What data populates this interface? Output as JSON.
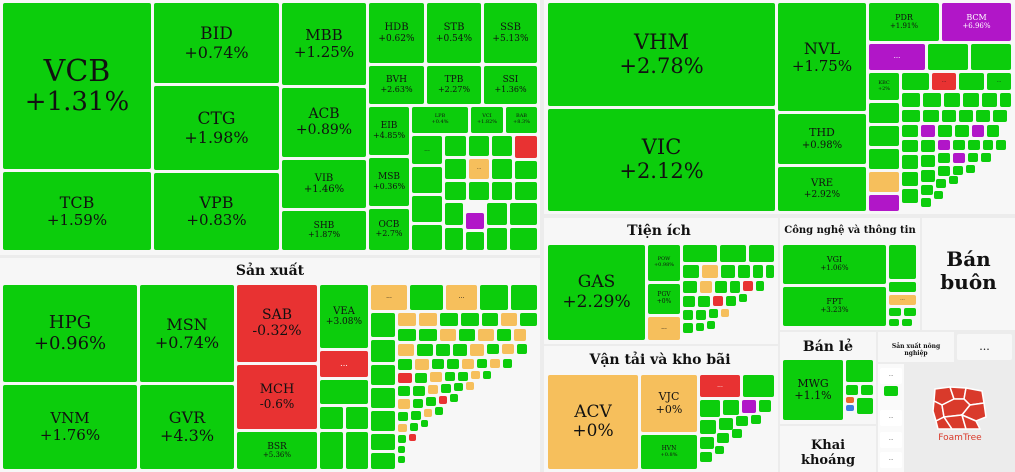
{
  "sectors": {
    "san_xuat": "Sản xuất",
    "tien_ich": "Tiện ích",
    "van_tai": "Vận tải và kho bãi",
    "cong_nghe": "Công nghệ và thông tin",
    "ban_buon": "Bán buôn",
    "ban_le": "Bán lẻ",
    "nong_nghiep": "Sản xuất nông nghiệp",
    "khai_khoang": "Khai khoáng"
  },
  "stocks": {
    "VCB": {
      "code": "VCB",
      "change": "+1.31%"
    },
    "BID": {
      "code": "BID",
      "change": "+0.74%"
    },
    "MBB": {
      "code": "MBB",
      "change": "+1.25%"
    },
    "HDB": {
      "code": "HDB",
      "change": "+0.62%"
    },
    "STB": {
      "code": "STB",
      "change": "+0.54%"
    },
    "SSB": {
      "code": "SSB",
      "change": "+5.13%"
    },
    "BVH": {
      "code": "BVH",
      "change": "+2.63%"
    },
    "TPB": {
      "code": "TPB",
      "change": "+2.27%"
    },
    "SSI": {
      "code": "SSI",
      "change": "+1.36%"
    },
    "EIB": {
      "code": "EIB",
      "change": "+4.85%"
    },
    "LPB": {
      "code": "LPB",
      "change": "+0.4%"
    },
    "VCI": {
      "code": "VCI",
      "change": "+1.82%"
    },
    "BAB": {
      "code": "BAB",
      "change": "+8.3%"
    },
    "CTG": {
      "code": "CTG",
      "change": "+1.98%"
    },
    "ACB": {
      "code": "ACB",
      "change": "+0.89%"
    },
    "VIB": {
      "code": "VIB",
      "change": "+1.46%"
    },
    "MSB": {
      "code": "MSB",
      "change": "+0.36%"
    },
    "TCB": {
      "code": "TCB",
      "change": "+1.59%"
    },
    "VPB": {
      "code": "VPB",
      "change": "+0.83%"
    },
    "SHB": {
      "code": "SHB",
      "change": "+1.87%"
    },
    "OCB": {
      "code": "OCB",
      "change": "+2.7%"
    },
    "VHM": {
      "code": "VHM",
      "change": "+2.78%"
    },
    "VIC": {
      "code": "VIC",
      "change": "+2.12%"
    },
    "NVL": {
      "code": "NVL",
      "change": "+1.75%"
    },
    "THD": {
      "code": "THD",
      "change": "+0.98%"
    },
    "VRE": {
      "code": "VRE",
      "change": "+2.92%"
    },
    "PDR": {
      "code": "PDR",
      "change": "+1.91%"
    },
    "BCM": {
      "code": "BCM",
      "change": "+6.96%"
    },
    "KBC": {
      "code": "KBC",
      "change": "+2%"
    },
    "HPG": {
      "code": "HPG",
      "change": "+0.96%"
    },
    "MSN": {
      "code": "MSN",
      "change": "+0.74%"
    },
    "SAB": {
      "code": "SAB",
      "change": "-0.32%"
    },
    "VEA": {
      "code": "VEA",
      "change": "+3.08%"
    },
    "MCH": {
      "code": "MCH",
      "change": "-0.6%"
    },
    "VNM": {
      "code": "VNM",
      "change": "+1.76%"
    },
    "GVR": {
      "code": "GVR",
      "change": "+4.3%"
    },
    "BSR": {
      "code": "BSR",
      "change": "+5.36%"
    },
    "GAS": {
      "code": "GAS",
      "change": "+2.29%"
    },
    "POW": {
      "code": "POW",
      "change": "+0.98%"
    },
    "PGV": {
      "code": "PGV",
      "change": "+0%"
    },
    "ACV": {
      "code": "ACV",
      "change": "+0%"
    },
    "VJC": {
      "code": "VJC",
      "change": "+0%"
    },
    "HVN": {
      "code": "HVN",
      "change": "+0.8%"
    },
    "VGI": {
      "code": "VGI",
      "change": "+1.06%"
    },
    "FPT": {
      "code": "FPT",
      "change": "+3.23%"
    },
    "MWG": {
      "code": "MWG",
      "change": "+1.1%"
    }
  },
  "more": "...",
  "brand": "FoamTree",
  "colors": {
    "up": "#0ccd0c",
    "down": "#e83232",
    "flat": "#f6bf5c",
    "ceiling": "#b116c8"
  }
}
